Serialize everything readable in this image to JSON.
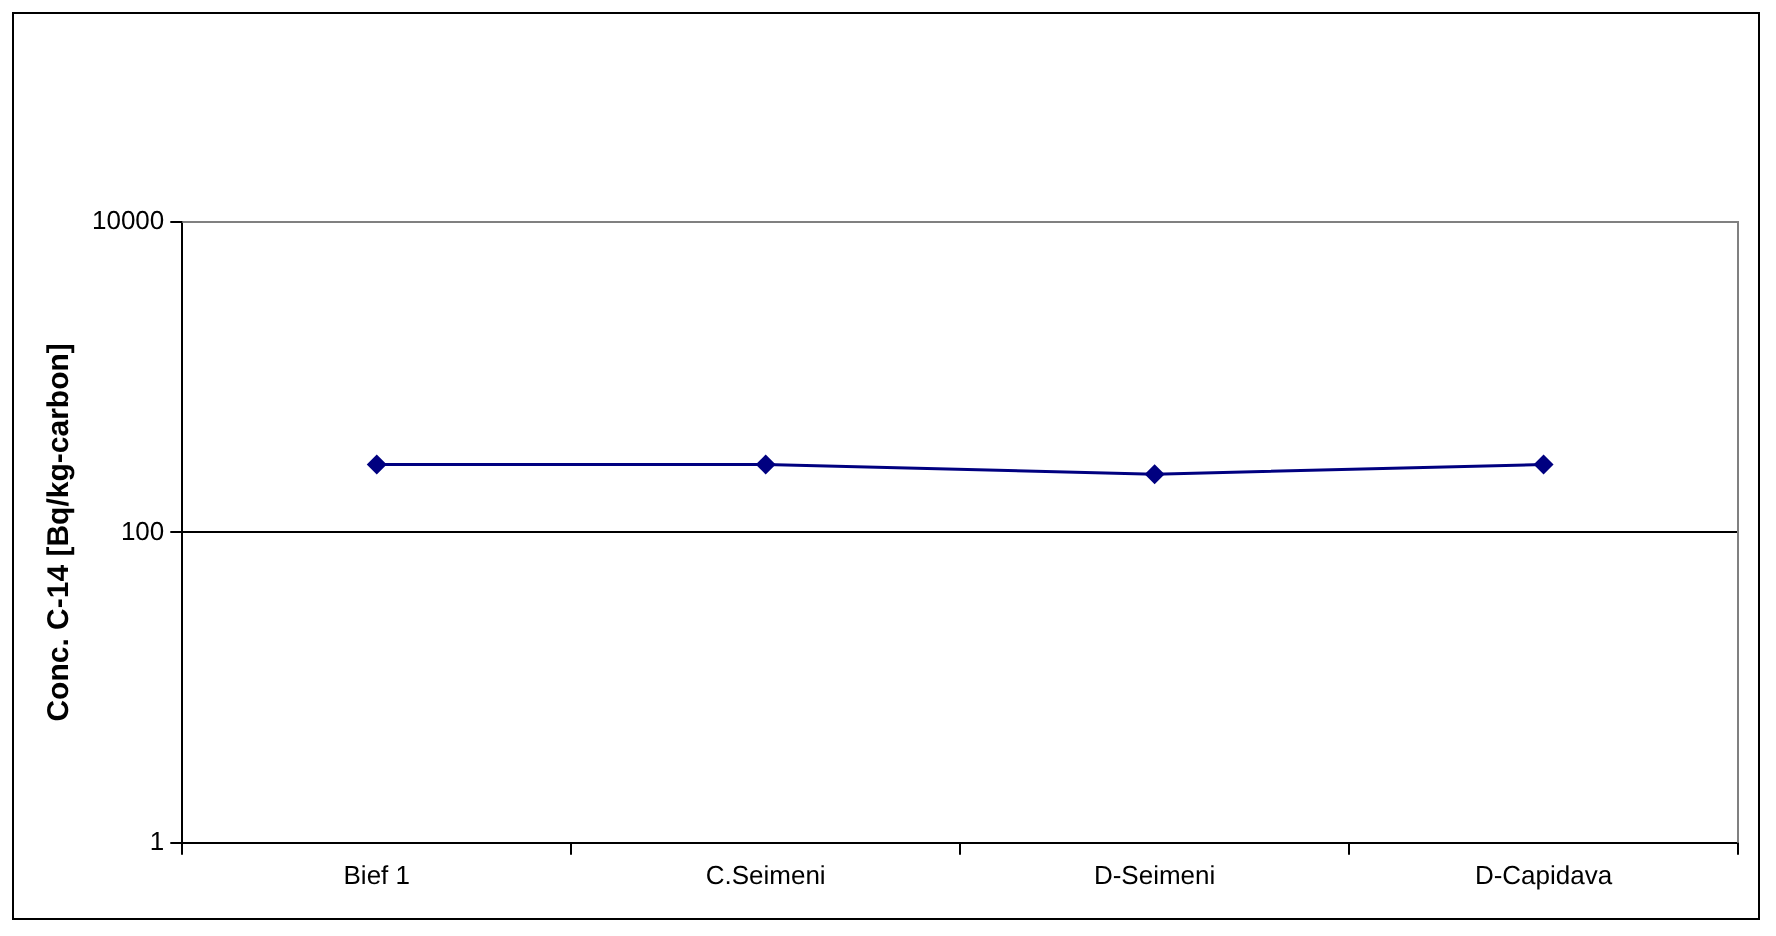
{
  "chart_data": {
    "type": "line",
    "ylabel": "Conc. C-14 [Bq/kg-carbon]",
    "categories": [
      "Bief 1",
      "C.Seimeni",
      "D-Seimeni",
      "D-Capidava"
    ],
    "series": [
      {
        "color": "#000080",
        "values": [
          274,
          274,
          237,
          274
        ]
      }
    ],
    "log": "y",
    "ylim": [
      1,
      10000
    ],
    "yticks": [
      1,
      100,
      10000
    ],
    "grid": "y",
    "legend": false,
    "marker": "diamond",
    "line_style": "solid"
  }
}
